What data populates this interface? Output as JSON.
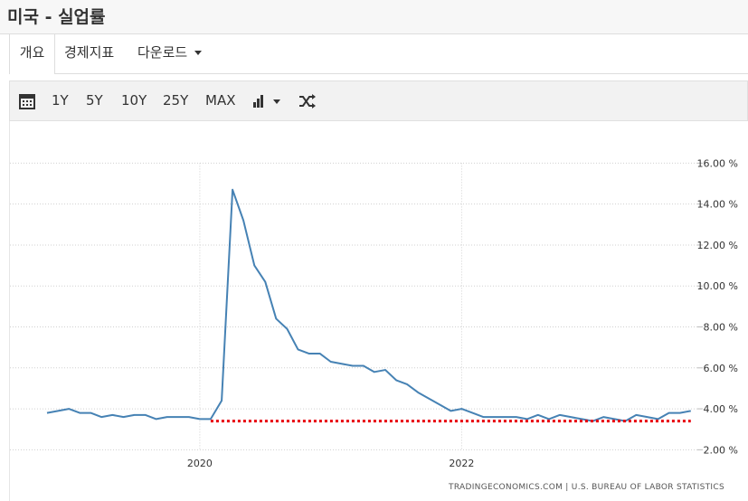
{
  "header": {
    "title": "미국 - 실업률"
  },
  "tabs": [
    "개요",
    "경제지표",
    "다운로드"
  ],
  "toolbar": [
    "1Y",
    "5Y",
    "10Y",
    "25Y",
    "MAX"
  ],
  "chart_data": {
    "type": "line",
    "source": "TRADINGECONOMICS.COM  |  U.S. BUREAU OF LABOR STATISTICS",
    "color": "#4682b4",
    "x": [
      2018.833,
      2018.917,
      2019,
      2019.083,
      2019.167,
      2019.25,
      2019.333,
      2019.417,
      2019.5,
      2019.583,
      2019.667,
      2019.75,
      2019.833,
      2019.917,
      2020,
      2020.083,
      2020.167,
      2020.25,
      2020.333,
      2020.417,
      2020.5,
      2020.583,
      2020.667,
      2020.75,
      2020.833,
      2020.917,
      2021,
      2021.083,
      2021.167,
      2021.25,
      2021.333,
      2021.417,
      2021.5,
      2021.583,
      2021.667,
      2021.75,
      2021.833,
      2021.917,
      2022,
      2022.083,
      2022.167,
      2022.25,
      2022.333,
      2022.417,
      2022.5,
      2022.583,
      2022.667,
      2022.75,
      2022.833,
      2022.917,
      2023,
      2023.083,
      2023.167,
      2023.25,
      2023.333,
      2023.417,
      2023.5,
      2023.583,
      2023.667,
      2023.75
    ],
    "values": [
      3.8,
      3.9,
      4.0,
      3.8,
      3.8,
      3.6,
      3.7,
      3.6,
      3.7,
      3.7,
      3.5,
      3.6,
      3.6,
      3.6,
      3.5,
      3.5,
      4.4,
      14.7,
      13.2,
      11.0,
      10.2,
      8.4,
      7.9,
      6.9,
      6.7,
      6.7,
      6.3,
      6.2,
      6.1,
      6.1,
      5.8,
      5.9,
      5.4,
      5.2,
      4.8,
      4.5,
      4.2,
      3.9,
      4.0,
      3.8,
      3.6,
      3.6,
      3.6,
      3.6,
      3.5,
      3.7,
      3.5,
      3.7,
      3.6,
      3.5,
      3.4,
      3.6,
      3.5,
      3.4,
      3.7,
      3.6,
      3.5,
      3.8,
      3.8,
      3.9
    ],
    "low_line": {
      "value": 3.4,
      "color": "#e8000b",
      "x": [
        2020.083,
        2023.75
      ]
    },
    "xlim": [
      2018.55,
      2023.8
    ],
    "ylim": [
      1.0,
      16.9
    ],
    "xticks": [
      2020,
      2022
    ],
    "yticks": [
      {
        "value": 2,
        "label": "2.00 %"
      },
      {
        "value": 4,
        "label": "4.00 %"
      },
      {
        "value": 6,
        "label": "6.00 %"
      },
      {
        "value": 8,
        "label": "8.00 %"
      },
      {
        "value": 10,
        "label": "10.00 %"
      },
      {
        "value": 12,
        "label": "12.00 %"
      },
      {
        "value": 14,
        "label": "14.00 %"
      },
      {
        "value": 16,
        "label": "16.00 %"
      }
    ],
    "grid": true
  }
}
